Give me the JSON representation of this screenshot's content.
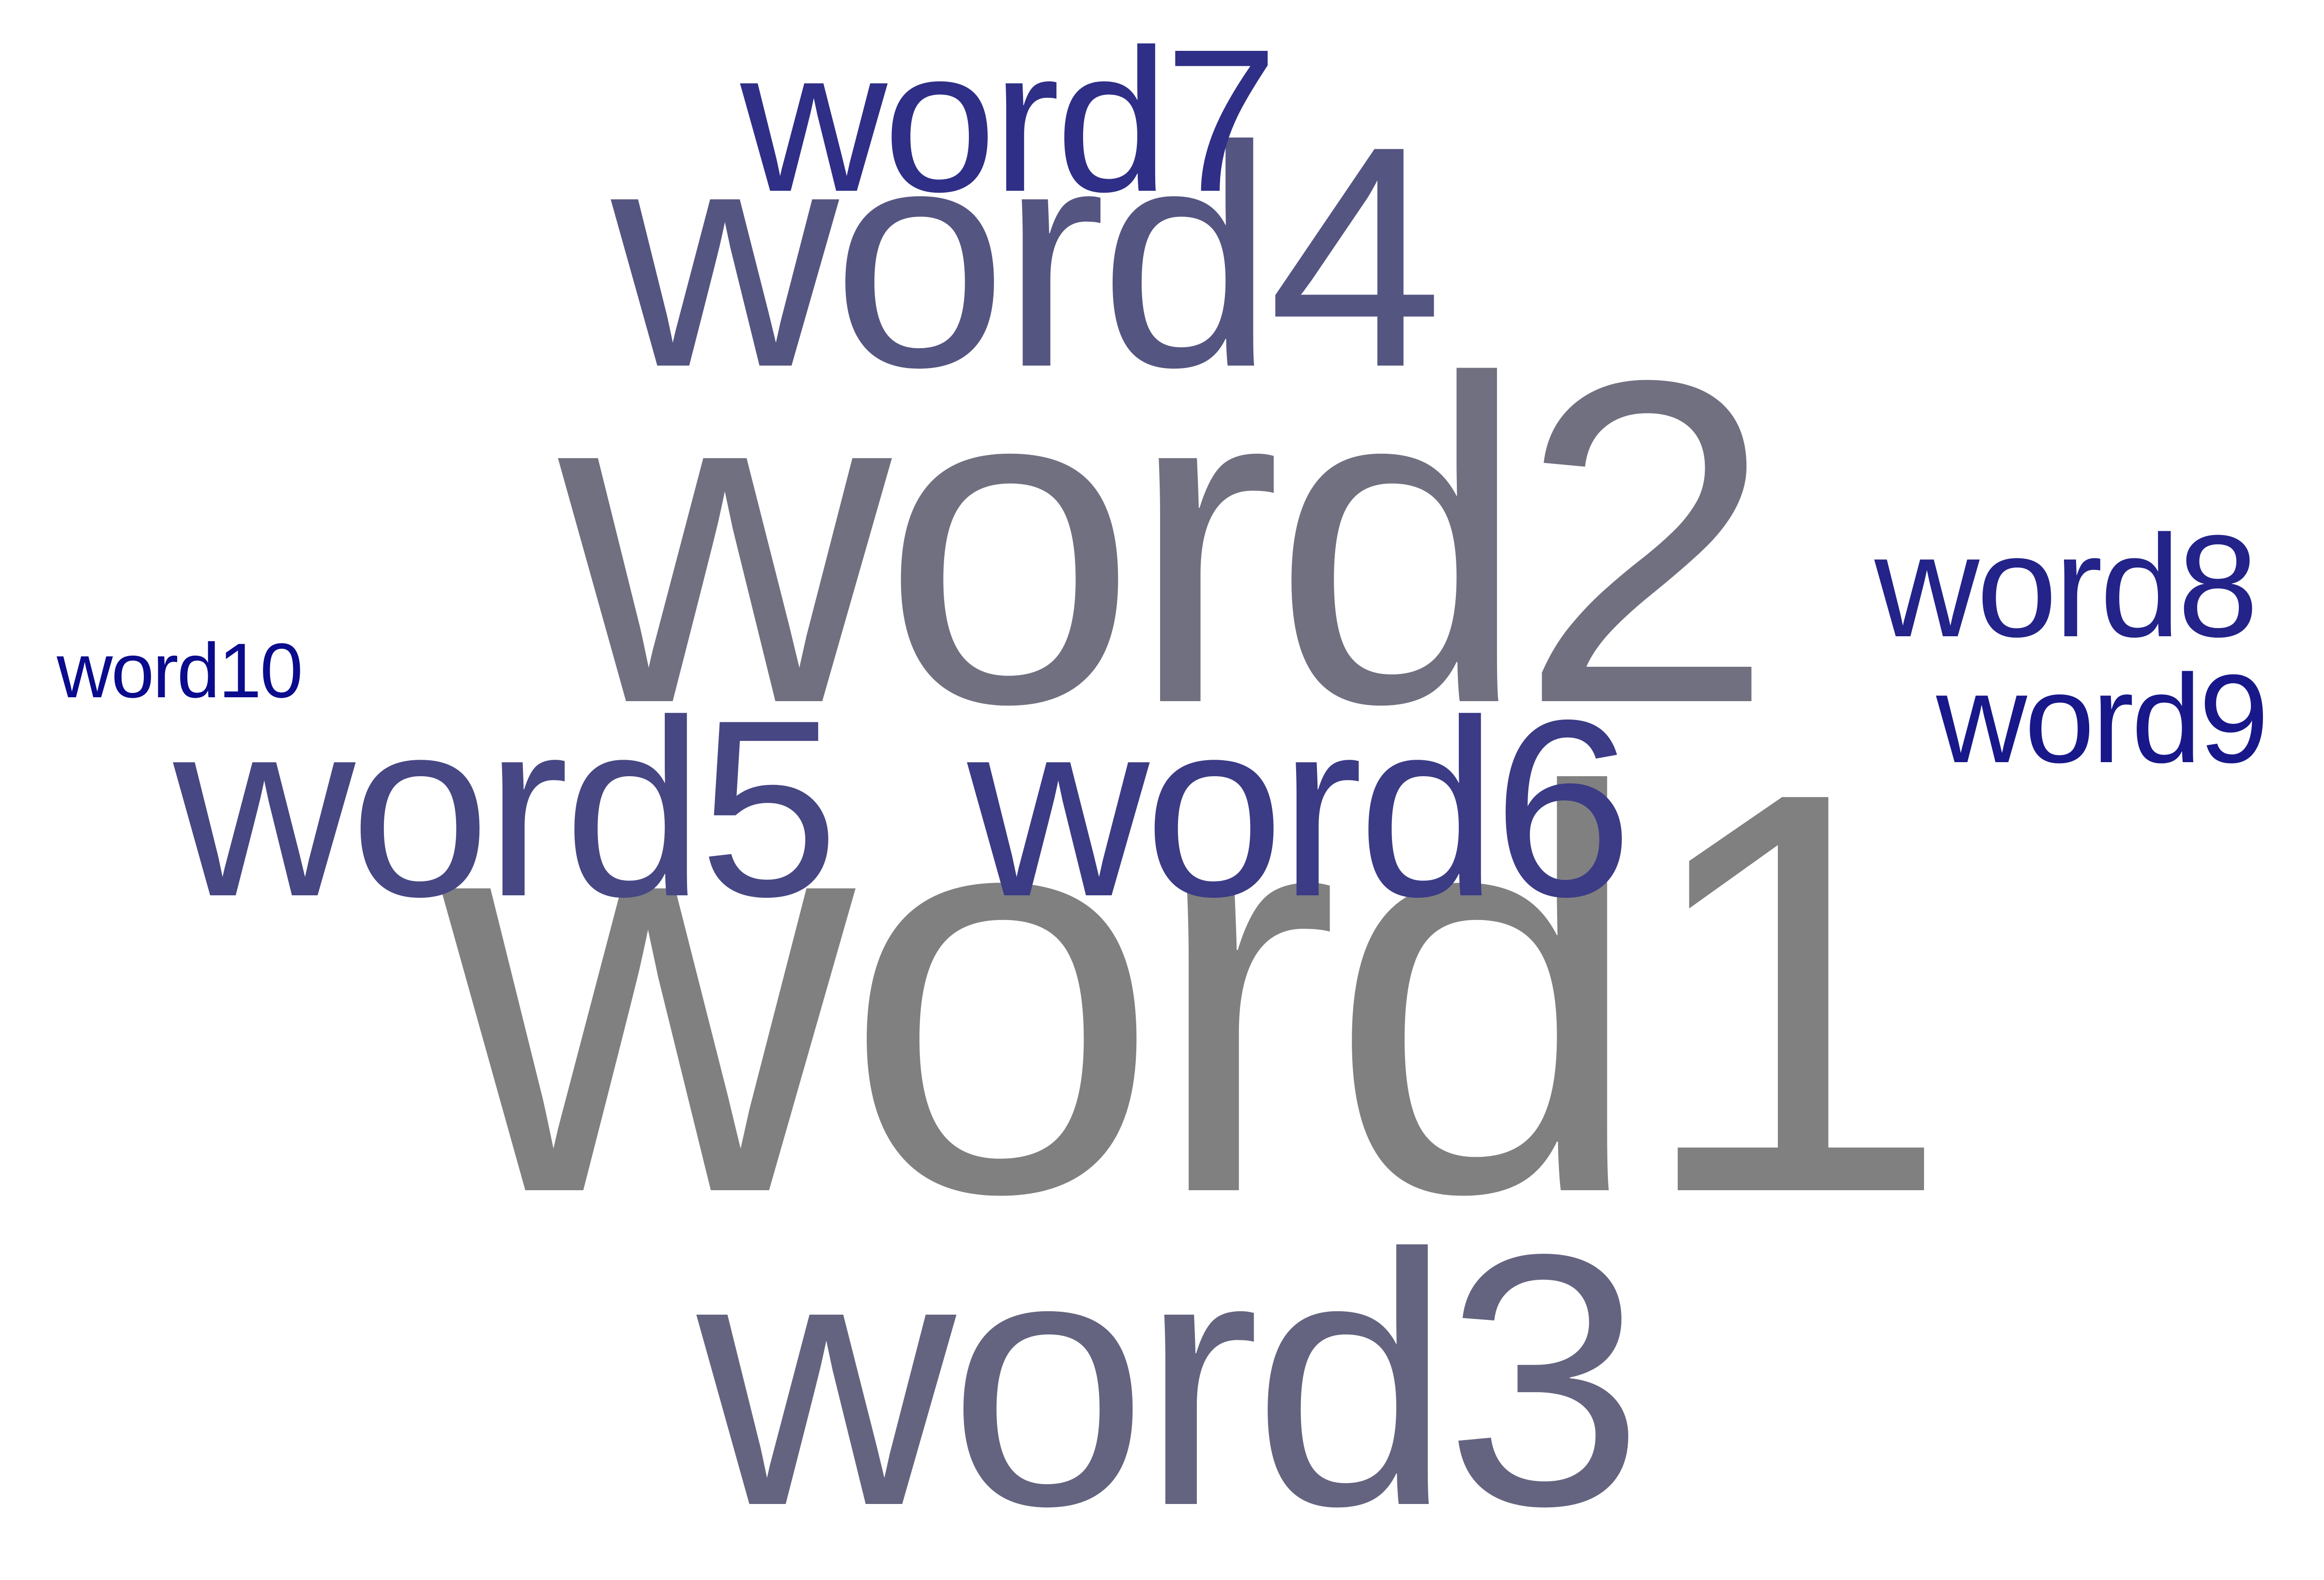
{
  "word_cloud": {
    "words": [
      {
        "id": "word1",
        "text": "word1",
        "color": "#808080"
      },
      {
        "id": "word2",
        "text": "word2",
        "color": "#707080"
      },
      {
        "id": "word3",
        "text": "word3",
        "color": "#646480"
      },
      {
        "id": "word4",
        "text": "word4",
        "color": "#555582"
      },
      {
        "id": "word5",
        "text": "word5",
        "color": "#474784"
      },
      {
        "id": "word6",
        "text": "word6",
        "color": "#3b3b86"
      },
      {
        "id": "word7",
        "text": "word7",
        "color": "#2f2f88"
      },
      {
        "id": "word8",
        "text": "word8",
        "color": "#23238a"
      },
      {
        "id": "word9",
        "text": "word9",
        "color": "#18188b"
      },
      {
        "id": "word10",
        "text": "word10",
        "color": "#0b0b8d"
      }
    ]
  }
}
